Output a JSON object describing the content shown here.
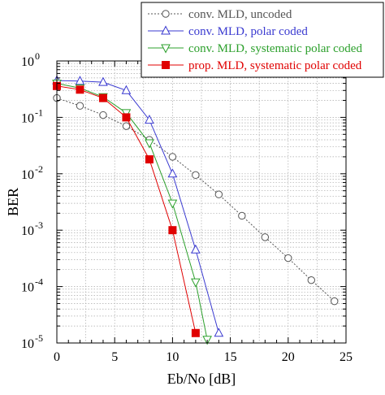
{
  "chart_data": {
    "type": "line",
    "xlabel": "Eb/No [dB]",
    "ylabel": "BER",
    "xlim": [
      0,
      25
    ],
    "ylim": [
      1e-05,
      1
    ],
    "yscale": "log",
    "grid": true,
    "legend_position": "top-right",
    "x_ticks": [
      "0",
      "5",
      "10",
      "15",
      "20",
      "25"
    ],
    "y_ticks": [
      {
        "base": "10",
        "exp": "0"
      },
      {
        "base": "10",
        "exp": "-1"
      },
      {
        "base": "10",
        "exp": "-2"
      },
      {
        "base": "10",
        "exp": "-3"
      },
      {
        "base": "10",
        "exp": "-4"
      },
      {
        "base": "10",
        "exp": "-5"
      }
    ],
    "series": [
      {
        "name": "conv. MLD, uncoded",
        "color": "#555555",
        "line_style": "dotted",
        "marker": "circle-open",
        "x": [
          0,
          2,
          4,
          6,
          8,
          10,
          12,
          14,
          16,
          18,
          20,
          22,
          24
        ],
        "y": [
          0.22,
          0.16,
          0.11,
          0.07,
          0.04,
          0.02,
          0.0095,
          0.0043,
          0.0018,
          0.00075,
          0.00032,
          0.00013,
          5.5e-05
        ]
      },
      {
        "name": "conv. MLD, polar coded",
        "color": "#3a3ad0",
        "line_style": "solid",
        "marker": "triangle-up-open",
        "x": [
          0,
          2,
          4,
          6,
          8,
          10,
          12,
          14
        ],
        "y": [
          0.45,
          0.44,
          0.42,
          0.3,
          0.09,
          0.01,
          0.00045,
          1.5e-05
        ]
      },
      {
        "name": "conv. MLD, systematic polar coded",
        "color": "#2ca02c",
        "line_style": "solid",
        "marker": "triangle-down-open",
        "x": [
          0,
          2,
          4,
          6,
          8,
          10,
          12,
          13
        ],
        "y": [
          0.4,
          0.33,
          0.23,
          0.12,
          0.035,
          0.003,
          0.00012,
          1.15e-05
        ]
      },
      {
        "name": "prop. MLD, systematic polar coded",
        "color": "#e00000",
        "line_style": "solid",
        "marker": "square-filled",
        "x": [
          0,
          2,
          4,
          6,
          8,
          10,
          12
        ],
        "y": [
          0.36,
          0.31,
          0.22,
          0.1,
          0.018,
          0.001,
          1.5e-05
        ]
      }
    ]
  }
}
